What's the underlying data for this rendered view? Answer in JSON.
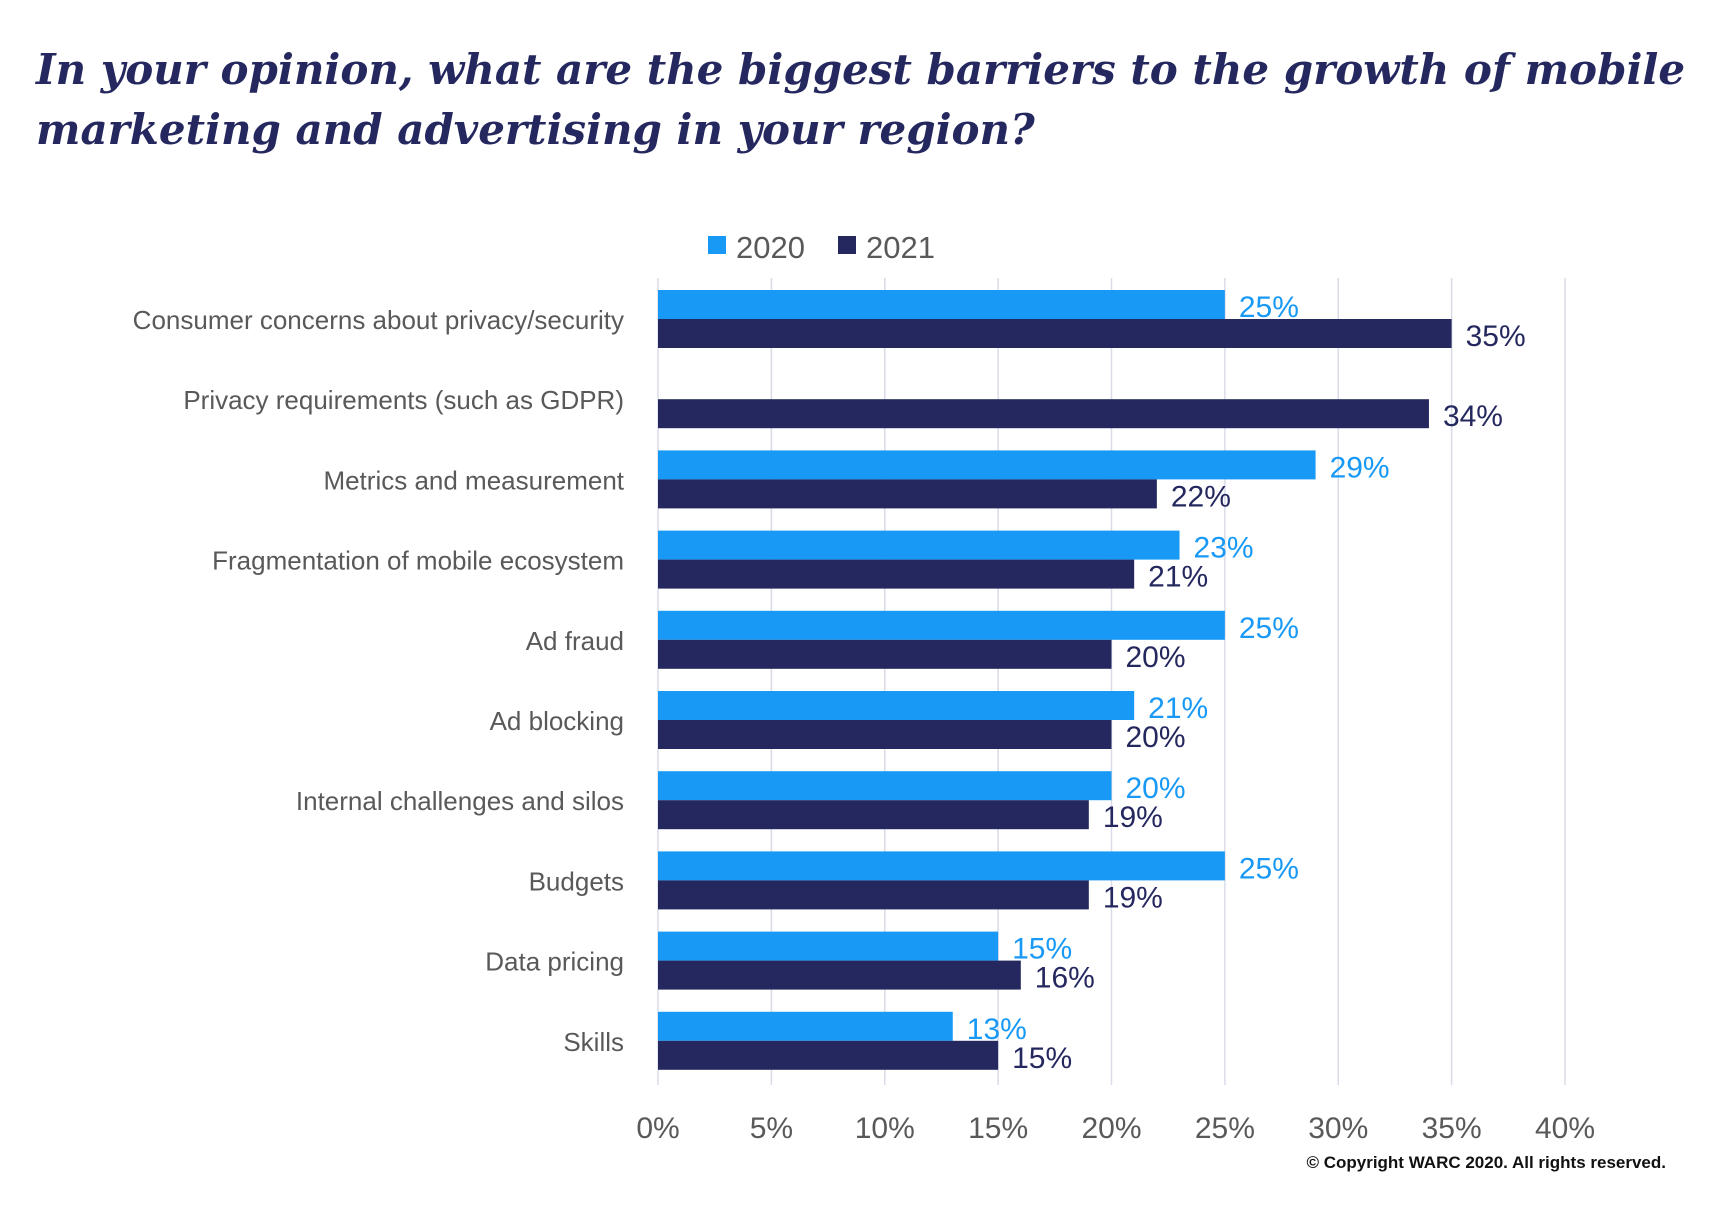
{
  "chart_data": {
    "type": "bar",
    "orientation": "horizontal",
    "title": "In your opinion, what are the biggest barriers to the growth of mobile marketing and advertising in your region?",
    "categories": [
      "Consumer concerns about privacy/security",
      "Privacy requirements (such as GDPR)",
      "Metrics and measurement",
      "Fragmentation of mobile ecosystem",
      "Ad fraud",
      "Ad blocking",
      "Internal challenges and silos",
      "Budgets",
      "Data pricing",
      "Skills"
    ],
    "series": [
      {
        "name": "2020",
        "color": "#1899f5",
        "values": [
          25,
          null,
          29,
          23,
          25,
          21,
          20,
          25,
          15,
          13
        ]
      },
      {
        "name": "2021",
        "color": "#25285f",
        "values": [
          35,
          34,
          22,
          21,
          20,
          20,
          19,
          19,
          16,
          15
        ]
      }
    ],
    "xlim": [
      0,
      40
    ],
    "xticks": [
      0,
      5,
      10,
      15,
      20,
      25,
      30,
      35,
      40
    ],
    "tick_suffix": "%",
    "grid": "vertical",
    "legend_position": "top"
  },
  "copyright": "© Copyright WARC 2020. All rights reserved."
}
